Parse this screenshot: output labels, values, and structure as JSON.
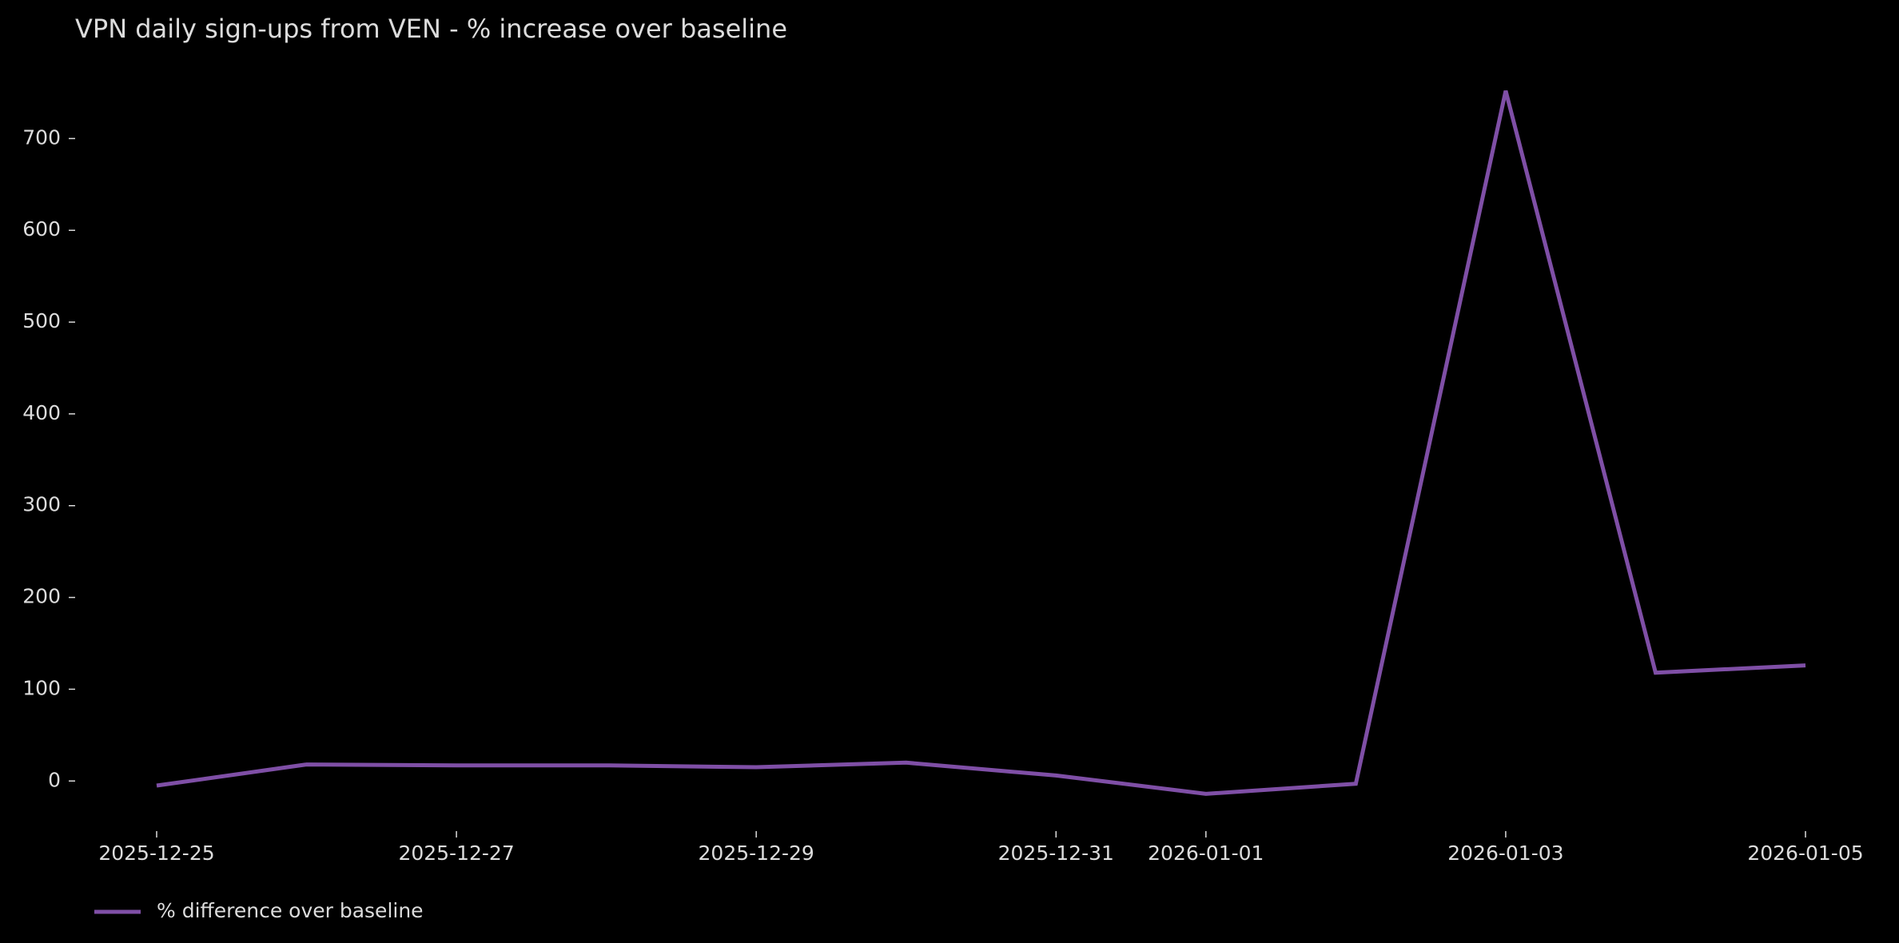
{
  "chart_data": {
    "type": "line",
    "title": "VPN daily sign-ups from VEN - % increase over baseline",
    "x": [
      "2025-12-25",
      "2025-12-26",
      "2025-12-27",
      "2025-12-28",
      "2025-12-29",
      "2025-12-30",
      "2025-12-31",
      "2026-01-01",
      "2026-01-02",
      "2026-01-03",
      "2026-01-04",
      "2026-01-05"
    ],
    "series": [
      {
        "name": "% difference over baseline",
        "color": "#7f4fa6",
        "values": [
          -5,
          18,
          17,
          17,
          15,
          20,
          6,
          -14,
          -3,
          752,
          118,
          126
        ]
      }
    ],
    "xlim": [
      "2025-12-25",
      "2026-01-05"
    ],
    "xticks": [
      "2025-12-25",
      "2025-12-27",
      "2025-12-29",
      "2025-12-31",
      "2026-01-01",
      "2026-01-03",
      "2026-01-05"
    ],
    "ylim": [
      -52,
      790
    ],
    "yticks": [
      0,
      100,
      200,
      300,
      400,
      500,
      600,
      700
    ],
    "grid": false,
    "legend": "lower left"
  }
}
